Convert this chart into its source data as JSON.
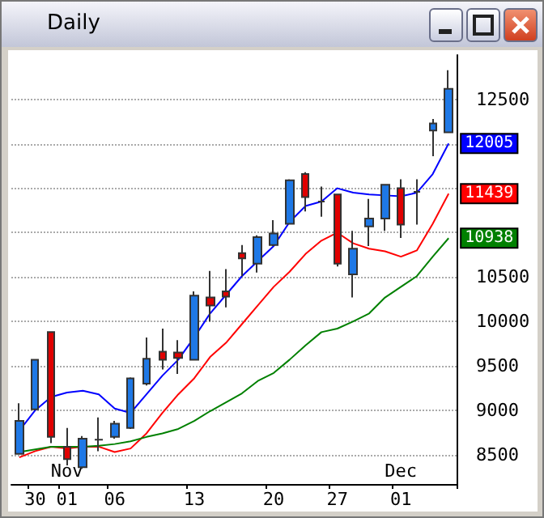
{
  "chart_data": {
    "type": "candlestick",
    "title": "Daily",
    "categories": [
      null,
      "30",
      null,
      "01",
      null,
      null,
      "06",
      null,
      null,
      null,
      null,
      "13",
      null,
      null,
      null,
      null,
      "20",
      null,
      null,
      null,
      "27",
      null,
      null,
      null,
      "01",
      null,
      null,
      null
    ],
    "ohlc": [
      [
        8510,
        9080,
        8510,
        8880
      ],
      [
        9010,
        9570,
        9000,
        9570
      ],
      [
        9880,
        9880,
        8630,
        8700
      ],
      [
        8590,
        8800,
        8380,
        8450
      ],
      [
        8360,
        8710,
        8340,
        8680
      ],
      [
        8670,
        8920,
        8540,
        8670
      ],
      [
        8700,
        8880,
        8680,
        8850
      ],
      [
        8800,
        9370,
        8790,
        9360
      ],
      [
        9300,
        9820,
        9280,
        9580
      ],
      [
        9660,
        9920,
        9460,
        9570
      ],
      [
        9650,
        9790,
        9410,
        9590
      ],
      [
        9570,
        10340,
        9570,
        10290
      ],
      [
        10270,
        10570,
        10000,
        10180
      ],
      [
        10340,
        10590,
        10160,
        10280
      ],
      [
        10770,
        10860,
        10510,
        10710
      ],
      [
        10650,
        10970,
        10550,
        10950
      ],
      [
        10860,
        11140,
        10850,
        10990
      ],
      [
        11100,
        11600,
        11090,
        11590
      ],
      [
        11660,
        11680,
        11240,
        11400
      ],
      [
        11350,
        11520,
        11180,
        11350
      ],
      [
        11430,
        11440,
        10620,
        10650
      ],
      [
        10530,
        11020,
        10270,
        10820
      ],
      [
        11070,
        11380,
        10850,
        11160
      ],
      [
        11160,
        11540,
        11020,
        11540
      ],
      [
        11500,
        11600,
        10940,
        11090
      ],
      [
        11460,
        11600,
        11090,
        11460
      ],
      [
        12150,
        12280,
        11860,
        12230
      ],
      [
        12130,
        12830,
        12130,
        12620
      ]
    ],
    "colors": [
      "#1e78e6",
      "#1e78e6",
      "#e00000",
      "#e00000",
      "#1e78e6",
      "#404040",
      "#1e78e6",
      "#1e78e6",
      "#1e78e6",
      "#e00000",
      "#e00000",
      "#1e78e6",
      "#e00000",
      "#e00000",
      "#e00000",
      "#1e78e6",
      "#1e78e6",
      "#1e78e6",
      "#e00000",
      "#404040",
      "#e00000",
      "#1e78e6",
      "#1e78e6",
      "#1e78e6",
      "#e00000",
      "#404040",
      "#1e78e6",
      "#1e78e6"
    ],
    "series": [
      {
        "type": "line",
        "color": "#0000ff",
        "values": [
          8770,
          9000,
          9150,
          9200,
          9220,
          9180,
          9020,
          8970,
          9180,
          9390,
          9570,
          9820,
          10090,
          10300,
          10510,
          10680,
          10850,
          11120,
          11300,
          11350,
          11500,
          11450,
          11430,
          11420,
          11410,
          11450,
          11660,
          12005
        ],
        "value_labels": [
          null,
          null,
          null,
          null,
          null,
          null,
          null,
          null,
          null,
          null,
          null,
          null,
          null,
          null,
          null,
          null,
          null,
          null,
          null,
          null,
          null,
          null,
          null,
          null,
          null,
          null,
          null,
          "12005"
        ]
      },
      {
        "type": "line",
        "color": "#ff0000",
        "values": [
          8470,
          8540,
          8590,
          8570,
          8590,
          8590,
          8530,
          8570,
          8740,
          8970,
          9180,
          9360,
          9600,
          9760,
          9970,
          10180,
          10390,
          10560,
          10760,
          10910,
          11000,
          10880,
          10820,
          10790,
          10730,
          10800,
          11100,
          11439
        ],
        "value_labels": [
          null,
          null,
          null,
          null,
          null,
          null,
          null,
          null,
          null,
          null,
          null,
          null,
          null,
          null,
          null,
          null,
          null,
          null,
          null,
          null,
          null,
          null,
          null,
          null,
          null,
          null,
          null,
          "11439"
        ]
      },
      {
        "type": "line",
        "color": "#008000",
        "values": [
          8530,
          8560,
          8590,
          8590,
          8590,
          8600,
          8620,
          8650,
          8700,
          8740,
          8790,
          8880,
          8990,
          9090,
          9190,
          9330,
          9420,
          9570,
          9730,
          9880,
          9920,
          10000,
          10090,
          10270,
          10390,
          10510,
          10730,
          10938
        ],
        "value_labels": [
          null,
          null,
          null,
          null,
          null,
          null,
          null,
          null,
          null,
          null,
          null,
          null,
          null,
          null,
          null,
          null,
          null,
          null,
          null,
          null,
          null,
          null,
          null,
          null,
          null,
          null,
          null,
          "10938"
        ]
      }
    ],
    "annotations": [
      "Nov",
      "Dec"
    ],
    "ylim": [
      8170,
      13000
    ],
    "yticks": [
      8500,
      9000,
      9500,
      10000,
      10500,
      {
        "value": 11000,
        "label": null
      },
      {
        "value": 11500,
        "label": null
      },
      {
        "value": 12000,
        "label": null
      },
      12500
    ],
    "grid": "y"
  }
}
